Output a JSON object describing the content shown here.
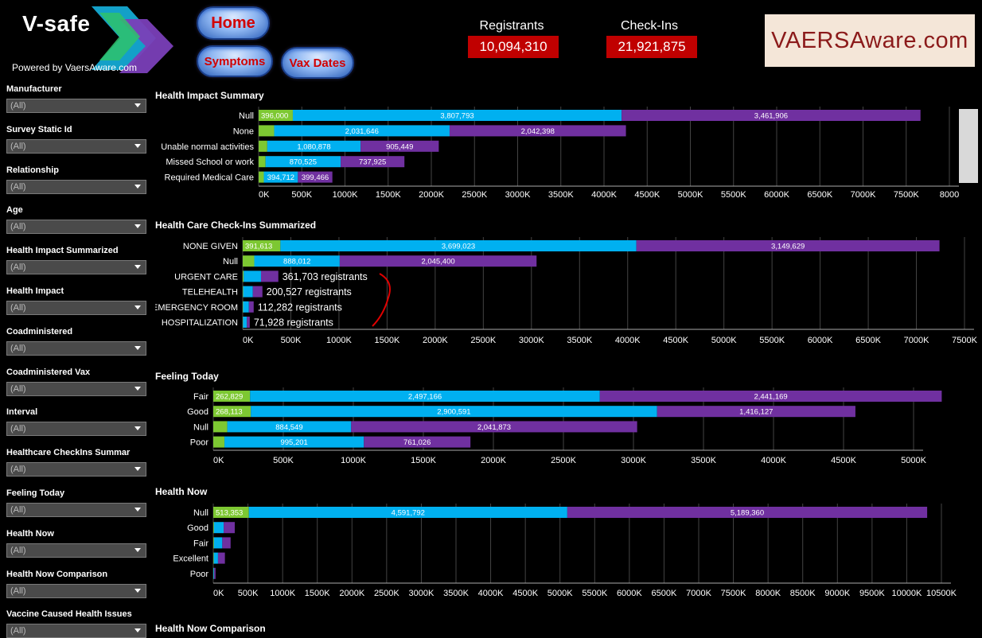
{
  "header": {
    "logo_title": "V-safe",
    "logo_subtitle": "Powered by VaersAware.com",
    "nav": {
      "home": "Home",
      "symptoms": "Symptoms",
      "vax_dates": "Vax Dates"
    },
    "kpis": [
      {
        "label": "Registrants",
        "value": "10,094,310"
      },
      {
        "label": "Check-Ins",
        "value": "21,921,875"
      }
    ],
    "brand_box": "VAERSAware.com"
  },
  "sidebar": {
    "filters": [
      {
        "label": "Manufacturer",
        "value": "(All)"
      },
      {
        "label": "Survey Static Id",
        "value": "(All)"
      },
      {
        "label": "Relationship",
        "value": "(All)"
      },
      {
        "label": "Age",
        "value": "(All)"
      },
      {
        "label": "Health Impact Summarized",
        "value": "(All)"
      },
      {
        "label": "Health Impact",
        "value": "(All)"
      },
      {
        "label": "Coadministered",
        "value": "(All)"
      },
      {
        "label": "Coadministered Vax",
        "value": "(All)"
      },
      {
        "label": "Interval",
        "value": "(All)"
      },
      {
        "label": "Healthcare CheckIns Summar",
        "value": "(All)"
      },
      {
        "label": "Feeling Today",
        "value": "(All)"
      },
      {
        "label": "Health Now",
        "value": "(All)"
      },
      {
        "label": "Health Now Comparison",
        "value": "(All)"
      },
      {
        "label": "Vaccine Caused Health Issues",
        "value": "(All)"
      }
    ]
  },
  "colors": {
    "green": "#7dc832",
    "blue": "#00b0f0",
    "purple": "#7030a0",
    "red_kpi": "#c00000",
    "grid": "#444444"
  },
  "footer_section_title": "Health Now Comparison",
  "chart_data": [
    {
      "type": "bar",
      "orientation": "horizontal",
      "stacked": true,
      "title": "Health Impact Summary",
      "categories": [
        "Null",
        "None",
        "Unable normal activities",
        "Missed School or work",
        "Required Medical Care"
      ],
      "series": [
        {
          "values": [
            396000,
            180000,
            100000,
            80000,
            60000
          ],
          "labels": [
            "396,000",
            "",
            "",
            "",
            ""
          ]
        },
        {
          "values": [
            3807793,
            2031646,
            1080878,
            870525,
            394712
          ],
          "labels": [
            "3,807,793",
            "2,031,646",
            "1,080,878",
            "870,525",
            "394,712"
          ]
        },
        {
          "values": [
            3461906,
            2042398,
            905449,
            737925,
            399466
          ],
          "labels": [
            "3,461,906",
            "2,042,398",
            "905,449",
            "737,925",
            "399,466"
          ]
        }
      ],
      "xlim": [
        0,
        8000000
      ],
      "ticks": [
        "0K",
        "500K",
        "1000K",
        "1500K",
        "2000K",
        "2500K",
        "3000K",
        "3500K",
        "4000K",
        "4500K",
        "5000K",
        "5500K",
        "6000K",
        "6500K",
        "7000K",
        "7500K",
        "8000"
      ],
      "annotations": []
    },
    {
      "type": "bar",
      "orientation": "horizontal",
      "stacked": true,
      "title": "Health Care Check-Ins Summarized",
      "categories": [
        "NONE GIVEN",
        "Null",
        "URGENT CARE",
        "TELEHEALTH",
        "EMERGENCY ROOM",
        "HOSPITALIZATION"
      ],
      "series": [
        {
          "values": [
            391613,
            120000,
            10000,
            5000,
            4000,
            3000
          ],
          "labels": [
            "391,613",
            "",
            "",
            "",
            "",
            ""
          ]
        },
        {
          "values": [
            3699023,
            888012,
            180000,
            100000,
            60000,
            40000
          ],
          "labels": [
            "3,699,023",
            "888,012",
            "",
            "",
            "",
            ""
          ]
        },
        {
          "values": [
            3149629,
            2045400,
            180000,
            100000,
            50000,
            30000
          ],
          "labels": [
            "3,149,629",
            "2,045,400",
            "",
            "",
            "",
            ""
          ]
        }
      ],
      "xlim": [
        0,
        7500000
      ],
      "ticks": [
        "0K",
        "500K",
        "1000K",
        "1500K",
        "2000K",
        "2500K",
        "3000K",
        "3500K",
        "4000K",
        "4500K",
        "5000K",
        "5500K",
        "6000K",
        "6500K",
        "7000K",
        "7500K"
      ],
      "annotations": [
        "",
        "",
        "361,703 registrants",
        "200,527 registrants",
        "112,282 registrants",
        "71,928 registrants"
      ]
    },
    {
      "type": "bar",
      "orientation": "horizontal",
      "stacked": true,
      "title": "Feeling Today",
      "categories": [
        "Fair",
        "Good",
        "Null",
        "Poor"
      ],
      "series": [
        {
          "values": [
            262829,
            268113,
            100000,
            80000
          ],
          "labels": [
            "262,829",
            "268,113",
            "",
            ""
          ]
        },
        {
          "values": [
            2497166,
            2900591,
            884549,
            995201
          ],
          "labels": [
            "2,497,166",
            "2,900,591",
            "884,549",
            "995,201"
          ]
        },
        {
          "values": [
            2441169,
            1416127,
            2041873,
            761026
          ],
          "labels": [
            "2,441,169",
            "1,416,127",
            "2,041,873",
            "761,026"
          ]
        }
      ],
      "xlim": [
        0,
        5000000
      ],
      "ticks": [
        "0K",
        "500K",
        "1000K",
        "1500K",
        "2000K",
        "2500K",
        "3000K",
        "3500K",
        "4000K",
        "4500K",
        "5000K"
      ],
      "annotations": []
    },
    {
      "type": "bar",
      "orientation": "horizontal",
      "stacked": true,
      "title": "Health Now",
      "categories": [
        "Null",
        "Good",
        "Fair",
        "Excellent",
        "Poor"
      ],
      "series": [
        {
          "values": [
            513353,
            10000,
            10000,
            8000,
            3000
          ],
          "labels": [
            "513,353",
            "",
            "",
            "",
            ""
          ]
        },
        {
          "values": [
            4591792,
            140000,
            120000,
            60000,
            10000
          ],
          "labels": [
            "4,591,792",
            "",
            "",
            "",
            ""
          ]
        },
        {
          "values": [
            5189360,
            160000,
            120000,
            100000,
            20000
          ],
          "labels": [
            "5,189,360",
            "",
            "",
            "",
            ""
          ]
        }
      ],
      "xlim": [
        0,
        10500000
      ],
      "ticks": [
        "0K",
        "500K",
        "1000K",
        "1500K",
        "2000K",
        "2500K",
        "3000K",
        "3500K",
        "4000K",
        "4500K",
        "5000K",
        "5500K",
        "6000K",
        "6500K",
        "7000K",
        "7500K",
        "8000K",
        "8500K",
        "9000K",
        "9500K",
        "10000K",
        "10500K"
      ],
      "annotations": []
    }
  ]
}
